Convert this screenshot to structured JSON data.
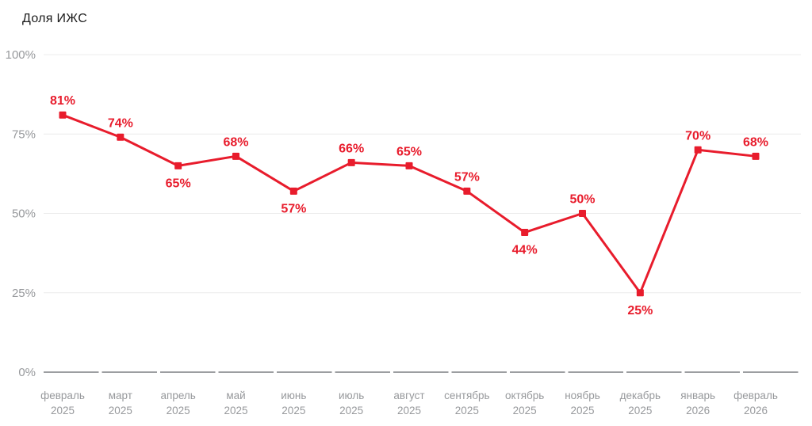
{
  "chart_data": {
    "type": "line",
    "title": "Доля ИЖС",
    "series_name": "Доля ИЖС",
    "categories": [
      {
        "month": "февраль",
        "year": "2025"
      },
      {
        "month": "март",
        "year": "2025"
      },
      {
        "month": "апрель",
        "year": "2025"
      },
      {
        "month": "май",
        "year": "2025"
      },
      {
        "month": "июнь",
        "year": "2025"
      },
      {
        "month": "июль",
        "year": "2025"
      },
      {
        "month": "август",
        "year": "2025"
      },
      {
        "month": "сентябрь",
        "year": "2025"
      },
      {
        "month": "октябрь",
        "year": "2025"
      },
      {
        "month": "ноябрь",
        "year": "2025"
      },
      {
        "month": "декабрь",
        "year": "2025"
      },
      {
        "month": "январь",
        "year": "2026"
      },
      {
        "month": "февраль",
        "year": "2026"
      }
    ],
    "values": [
      81,
      74,
      65,
      68,
      57,
      66,
      65,
      57,
      44,
      50,
      25,
      70,
      68
    ],
    "value_labels": [
      "81%",
      "74%",
      "65%",
      "68%",
      "57%",
      "66%",
      "65%",
      "57%",
      "44%",
      "50%",
      "25%",
      "70%",
      "68%"
    ],
    "label_position": [
      "above",
      "above",
      "below",
      "above",
      "below",
      "above",
      "above",
      "above",
      "below",
      "above",
      "below",
      "above",
      "above"
    ],
    "ylim": [
      0,
      100
    ],
    "yticks": [
      0,
      25,
      50,
      75,
      100
    ],
    "ytick_labels": [
      "0%",
      "25%",
      "50%",
      "75%",
      "100%"
    ],
    "grid": true,
    "legend": false
  },
  "colors": {
    "line": "#e81c2c",
    "marker": "#e81c2c",
    "value_label": "#e81c2c",
    "axis_text": "#97999c",
    "gridline": "#ececec",
    "axis_line": "#9c9ea1",
    "title_text": "#1b1b1b",
    "background": "#ffffff"
  }
}
